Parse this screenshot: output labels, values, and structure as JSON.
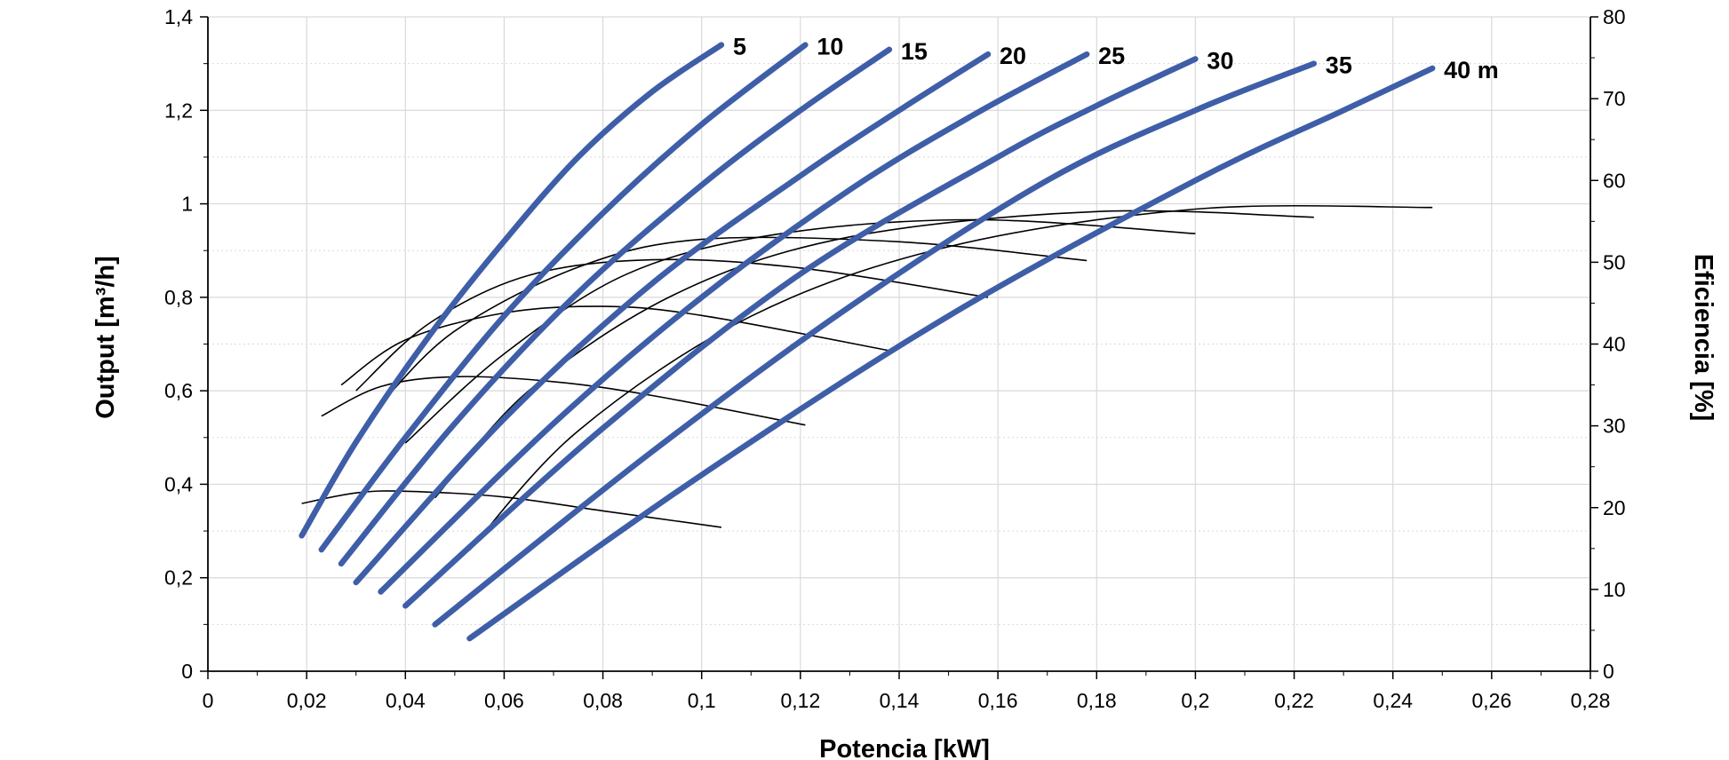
{
  "chart_data": {
    "type": "line",
    "title": "",
    "xlabel": "Potencia [kW]",
    "ylabel": "Output [m³/h]",
    "y2label": "Eficiencia [%]",
    "xlim": [
      0,
      0.28
    ],
    "ylim": [
      0,
      1.4
    ],
    "y2lim": [
      0,
      80
    ],
    "x_ticks": [
      "0",
      "0,02",
      "0,04",
      "0,06",
      "0,08",
      "0,1",
      "0,12",
      "0,14",
      "0,16",
      "0,18",
      "0,2",
      "0,22",
      "0,24",
      "0,26",
      "0,28"
    ],
    "y_ticks": [
      "0",
      "0,2",
      "0,4",
      "0,6",
      "0,8",
      "1",
      "1,2",
      "1,4"
    ],
    "y2_ticks": [
      "0",
      "10",
      "20",
      "30",
      "40",
      "50",
      "60",
      "70",
      "80"
    ],
    "grid": true,
    "colors": {
      "output": "#3f5ea8",
      "efficiency": "#000000",
      "grid": "#d9d9d9"
    },
    "output_series": [
      {
        "name": "5",
        "x": [
          0.019,
          0.03,
          0.045,
          0.06,
          0.075,
          0.09,
          0.104
        ],
        "y": [
          0.29,
          0.49,
          0.72,
          0.92,
          1.1,
          1.24,
          1.34
        ]
      },
      {
        "name": "10",
        "x": [
          0.023,
          0.04,
          0.06,
          0.08,
          0.1,
          0.121
        ],
        "y": [
          0.26,
          0.5,
          0.76,
          0.98,
          1.17,
          1.34
        ]
      },
      {
        "name": "15",
        "x": [
          0.027,
          0.05,
          0.075,
          0.1,
          0.12,
          0.138
        ],
        "y": [
          0.23,
          0.53,
          0.81,
          1.04,
          1.2,
          1.33
        ]
      },
      {
        "name": "20",
        "x": [
          0.03,
          0.06,
          0.09,
          0.12,
          0.14,
          0.158
        ],
        "y": [
          0.19,
          0.54,
          0.83,
          1.06,
          1.2,
          1.32
        ]
      },
      {
        "name": "25",
        "x": [
          0.035,
          0.07,
          0.1,
          0.13,
          0.155,
          0.178
        ],
        "y": [
          0.17,
          0.53,
          0.8,
          1.03,
          1.19,
          1.32
        ]
      },
      {
        "name": "30",
        "x": [
          0.04,
          0.08,
          0.12,
          0.16,
          0.18,
          0.2
        ],
        "y": [
          0.14,
          0.52,
          0.85,
          1.1,
          1.21,
          1.31
        ]
      },
      {
        "name": "35",
        "x": [
          0.046,
          0.09,
          0.13,
          0.17,
          0.2,
          0.224
        ],
        "y": [
          0.1,
          0.47,
          0.78,
          1.05,
          1.2,
          1.3
        ]
      },
      {
        "name": "40 m",
        "x": [
          0.053,
          0.1,
          0.15,
          0.2,
          0.23,
          0.248
        ],
        "y": [
          0.07,
          0.42,
          0.76,
          1.05,
          1.2,
          1.29
        ]
      }
    ],
    "efficiency_series": [
      {
        "x": [
          0.019,
          0.03,
          0.04,
          0.06,
          0.08,
          0.104
        ],
        "y": [
          20.5,
          21.8,
          22.0,
          21.3,
          19.6,
          17.6
        ]
      },
      {
        "x": [
          0.023,
          0.035,
          0.05,
          0.07,
          0.09,
          0.121
        ],
        "y": [
          31.2,
          34.8,
          36.0,
          35.4,
          33.7,
          30.1
        ]
      },
      {
        "x": [
          0.027,
          0.04,
          0.06,
          0.08,
          0.1,
          0.138
        ],
        "y": [
          35.0,
          40.5,
          43.8,
          44.6,
          43.5,
          39.2
        ]
      },
      {
        "x": [
          0.03,
          0.045,
          0.065,
          0.09,
          0.12,
          0.158
        ],
        "y": [
          34.3,
          42.6,
          48.4,
          50.3,
          49.3,
          45.7
        ]
      },
      {
        "x": [
          0.035,
          0.05,
          0.075,
          0.1,
          0.14,
          0.178
        ],
        "y": [
          32.7,
          41.6,
          49.4,
          52.8,
          52.5,
          50.2
        ]
      },
      {
        "x": [
          0.04,
          0.06,
          0.085,
          0.115,
          0.155,
          0.2
        ],
        "y": [
          27.9,
          38.8,
          48.6,
          53.4,
          55.2,
          53.5
        ]
      },
      {
        "x": [
          0.046,
          0.065,
          0.095,
          0.13,
          0.18,
          0.224
        ],
        "y": [
          21.2,
          34.3,
          46.2,
          53.1,
          56.2,
          55.5
        ]
      },
      {
        "x": [
          0.053,
          0.075,
          0.11,
          0.15,
          0.2,
          0.248
        ],
        "y": [
          14.8,
          29.4,
          43.4,
          51.9,
          56.5,
          56.7
        ]
      }
    ]
  }
}
